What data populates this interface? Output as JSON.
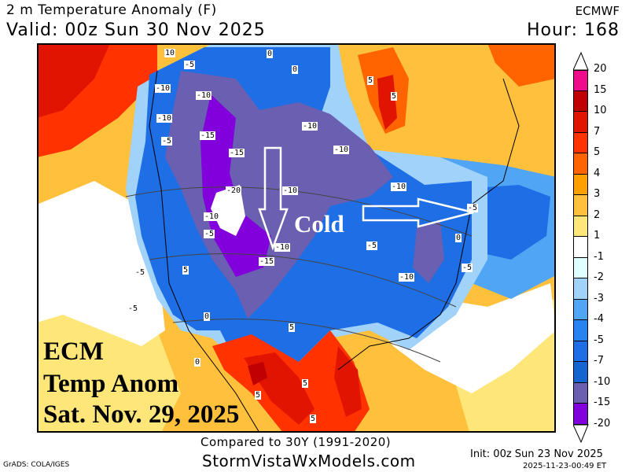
{
  "header": {
    "title": "2 m Temperature Anomaly (F)",
    "valid": "Valid: 00z Sun 30 Nov 2025",
    "model": "ECMWF",
    "hour": "Hour: 168"
  },
  "overlay": {
    "line1": "ECM",
    "line2": "Temp Anom",
    "line3": "Sat. Nov. 29, 2025",
    "cold_label": "Cold",
    "arrows": [
      "down-arrow",
      "right-arrow"
    ]
  },
  "contour_labels": [
    "10",
    "-5",
    "0",
    "-10",
    "-10",
    "-5",
    "-15",
    "-15",
    "-10",
    "-10",
    "0",
    "5",
    "5",
    "-10",
    "-20",
    "-10",
    "-10",
    "-10",
    "-5",
    "-5",
    "-15",
    "-10",
    "-5",
    "-5",
    "-10",
    "0",
    "-5",
    "5",
    "5",
    "0",
    "5",
    "5",
    "5",
    "0",
    "-5"
  ],
  "colorbar": {
    "labels": [
      "20",
      "15",
      "10",
      "7",
      "5",
      "4",
      "3",
      "2",
      "1",
      "-1",
      "-2",
      "-3",
      "-4",
      "-5",
      "-7",
      "-10",
      "-15",
      "-20"
    ],
    "colors": [
      "#f00a8c",
      "#c00000",
      "#e01400",
      "#ff3200",
      "#ff6400",
      "#ffa000",
      "#ffc03c",
      "#ffe678",
      "#ffffff",
      "#e0ffff",
      "#a0d2fa",
      "#50a5f5",
      "#2882f0",
      "#1e6ee6",
      "#1464d2",
      "#6a5fb0",
      "#8200dc"
    ]
  },
  "footer": {
    "compared": "Compared to 30Y (1991-2020)",
    "site": "StormVistaWxModels.com",
    "grads": "GrADS: COLA/IGES",
    "init": "Init: 00z Sun 23 Nov 2025",
    "stamp": "2025-11-23-00:49 ET"
  }
}
